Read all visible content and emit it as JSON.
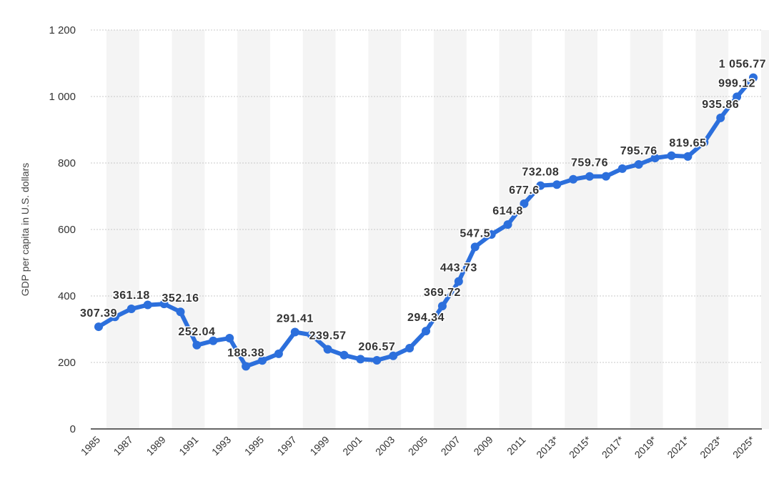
{
  "chart_data": {
    "type": "line",
    "title": "",
    "xlabel": "",
    "ylabel": "GDP per capita in U.S. dollars",
    "ylim": [
      0,
      1200
    ],
    "y_ticks": [
      0,
      200,
      400,
      600,
      800,
      1000,
      1200
    ],
    "y_tick_labels": [
      "0",
      "200",
      "400",
      "600",
      "800",
      "1 000",
      "1 200"
    ],
    "grid": true,
    "line_color": "#2c6fdc",
    "band_color": "#f4f4f4",
    "categories": [
      "1985",
      "1986",
      "1987",
      "1988",
      "1989",
      "1990",
      "1991",
      "1992",
      "1993",
      "1994",
      "1995",
      "1996",
      "1997",
      "1998",
      "1999",
      "2000",
      "2001",
      "2002",
      "2003",
      "2004",
      "2005",
      "2006",
      "2007",
      "2008",
      "2009",
      "2010",
      "2011",
      "2012",
      "2013*",
      "2014*",
      "2015*",
      "2016*",
      "2017*",
      "2018*",
      "2019*",
      "2020*",
      "2021*",
      "2022*",
      "2023*",
      "2024*",
      "2025*"
    ],
    "x_tick_labels": [
      "1985",
      "",
      "1987",
      "",
      "1989",
      "",
      "1991",
      "",
      "1993",
      "",
      "1995",
      "",
      "1997",
      "",
      "1999",
      "",
      "2001",
      "",
      "2003",
      "",
      "2005",
      "",
      "2007",
      "",
      "2009",
      "",
      "2011",
      "",
      "2013*",
      "",
      "2015*",
      "",
      "2017*",
      "",
      "2019*",
      "",
      "2021*",
      "",
      "2023*",
      "",
      "2025*"
    ],
    "values": [
      307.39,
      337,
      361.18,
      373,
      376,
      352.16,
      252.04,
      265,
      273,
      188.38,
      206,
      226,
      291.41,
      283,
      239.57,
      222,
      210,
      206.57,
      220,
      243,
      294.34,
      369.72,
      443.73,
      547.5,
      585,
      614.8,
      677.6,
      732.08,
      735,
      751,
      759.76,
      760,
      783,
      795.76,
      815,
      822,
      819.65,
      862,
      935.86,
      999.12,
      1056.77
    ],
    "data_labels": [
      "307.39",
      "",
      "361.18",
      "",
      "",
      "352.16",
      "252.04",
      "",
      "",
      "188.38",
      "",
      "",
      "291.41",
      "",
      "239.57",
      "",
      "",
      "206.57",
      "",
      "",
      "294.34",
      "369.72",
      "443.73",
      "547.5",
      "",
      "614.8",
      "677.6",
      "732.08",
      "",
      "",
      "759.76",
      "",
      "",
      "795.76",
      "",
      "",
      "819.65",
      "",
      "935.86",
      "999.12",
      "1 056.77"
    ]
  }
}
